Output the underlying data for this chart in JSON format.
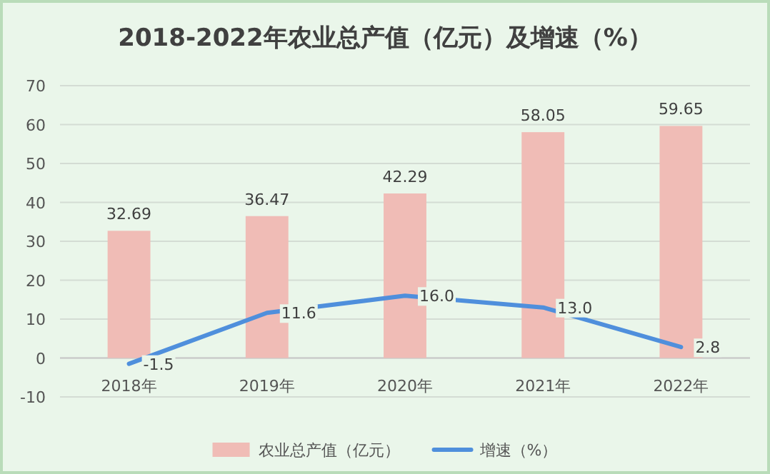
{
  "chart_data": {
    "type": "bar",
    "title": "2018-2022年农业总产值（亿元）及增速（%）",
    "categories": [
      "2018年",
      "2019年",
      "2020年",
      "2021年",
      "2022年"
    ],
    "series": [
      {
        "name": "农业总产值（亿元）",
        "color": "#f0bcb6",
        "values": [
          32.69,
          36.47,
          42.29,
          58.05,
          59.65
        ],
        "value_labels": [
          "32.69",
          "36.47",
          "42.29",
          "58.05",
          "59.65"
        ]
      },
      {
        "name": "增速（%）",
        "type": "line",
        "color": "#4f8fdc",
        "values": [
          -1.5,
          11.6,
          16.0,
          13.0,
          2.8
        ],
        "value_labels": [
          "-1.5",
          "11.6",
          "16.0",
          "13.0",
          "2.8"
        ]
      }
    ],
    "ylim": [
      -10,
      70
    ],
    "yticks": [
      -10,
      0,
      10,
      20,
      30,
      40,
      50,
      60,
      70
    ],
    "grid": "y",
    "legend": "bottom",
    "marker": "none",
    "line_style": "solid"
  }
}
